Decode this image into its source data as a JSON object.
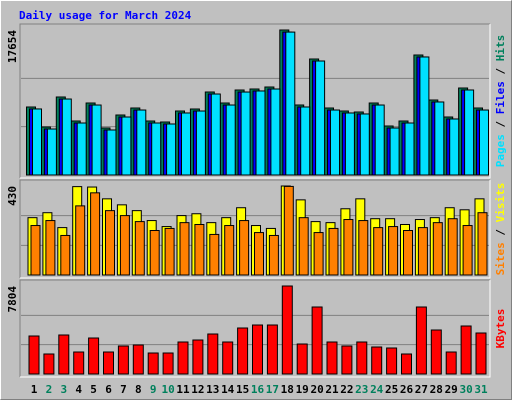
{
  "title": "Daily usage for March 2024",
  "chart_data": [
    {
      "type": "bar",
      "ylim": [
        0,
        17654
      ],
      "yticks": [
        17654
      ],
      "separator": "/",
      "series": [
        {
          "name": "Pages",
          "color": "#00E0FF",
          "values": [
            8040,
            5600,
            9250,
            6330,
            8520,
            5480,
            7060,
            7910,
            6330,
            6210,
            7550,
            7790,
            9860,
            8520,
            10100,
            10230,
            10470,
            17400,
            8280,
            13880,
            7910,
            7550,
            7430,
            8520,
            5720,
            6330,
            14370,
            8890,
            6820,
            10350,
            7910
          ]
        },
        {
          "name": "Files",
          "color": "#0000FF",
          "values": [
            8040,
            5600,
            9250,
            6330,
            8520,
            5480,
            7060,
            7910,
            6330,
            6210,
            7550,
            7790,
            9860,
            8520,
            10100,
            10230,
            10470,
            17400,
            8280,
            13880,
            7910,
            7550,
            7430,
            8520,
            5720,
            6330,
            14370,
            8890,
            6820,
            10350,
            7910
          ]
        },
        {
          "name": "Hits",
          "color": "#00805C",
          "values": [
            8279,
            5844,
            9497,
            6575,
            8766,
            5722,
            7305,
            8157,
            6575,
            6453,
            7792,
            8036,
            10105,
            8766,
            10349,
            10471,
            10714,
            17654,
            8523,
            14123,
            8157,
            7792,
            7670,
            8766,
            5966,
            6575,
            14610,
            9131,
            7062,
            10592,
            8157
          ]
        }
      ]
    },
    {
      "type": "bar",
      "ylim": [
        0,
        430
      ],
      "yticks": [
        430
      ],
      "separator": "/",
      "series": [
        {
          "name": "Sites",
          "color": "#FF8000",
          "values": [
            239,
            263,
            191,
            334,
            397,
            311,
            287,
            258,
            215,
            225,
            253,
            244,
            196,
            239,
            263,
            205,
            191,
            428,
            277,
            205,
            225,
            268,
            263,
            229,
            234,
            215,
            229,
            253,
            272,
            239,
            301
          ]
        },
        {
          "name": "Visits",
          "color": "#FFFF00",
          "values": [
            277,
            301,
            229,
            427,
            425,
            368,
            339,
            311,
            263,
            234,
            287,
            296,
            253,
            277,
            325,
            239,
            225,
            430,
            363,
            258,
            253,
            320,
            368,
            272,
            272,
            244,
            268,
            277,
            325,
            315,
            368
          ]
        }
      ]
    },
    {
      "type": "bar",
      "ylim": [
        0,
        7804
      ],
      "yticks": [
        7804
      ],
      "categories": [
        "1",
        "2",
        "3",
        "4",
        "5",
        "6",
        "7",
        "8",
        "9",
        "10",
        "11",
        "12",
        "13",
        "14",
        "15",
        "16",
        "17",
        "18",
        "19",
        "20",
        "21",
        "22",
        "23",
        "24",
        "25",
        "26",
        "27",
        "28",
        "29",
        "30",
        "31"
      ],
      "category_colors": [
        "#000000",
        "#00805C",
        "#00805C",
        "#000000",
        "#000000",
        "#000000",
        "#000000",
        "#000000",
        "#00805C",
        "#00805C",
        "#000000",
        "#000000",
        "#000000",
        "#000000",
        "#000000",
        "#00805C",
        "#00805C",
        "#000000",
        "#000000",
        "#000000",
        "#000000",
        "#000000",
        "#00805C",
        "#00805C",
        "#000000",
        "#000000",
        "#000000",
        "#000000",
        "#000000",
        "#00805C",
        "#00805C"
      ],
      "series": [
        {
          "name": "KBytes",
          "color": "#FF0000",
          "values": [
            3370,
            1774,
            3459,
            1951,
            3192,
            1951,
            2483,
            2572,
            1862,
            1862,
            2838,
            3015,
            3547,
            2838,
            4079,
            4345,
            4345,
            7804,
            2660,
            5942,
            2838,
            2483,
            2838,
            2394,
            2306,
            1774,
            5942,
            3902,
            1951,
            4257,
            3636
          ]
        }
      ]
    }
  ]
}
